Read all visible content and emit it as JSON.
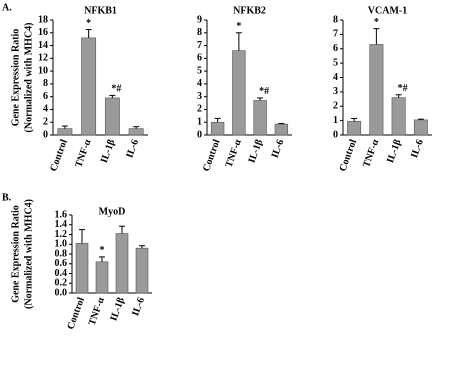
{
  "panel_labels": [
    "A.",
    "B."
  ],
  "chart_data": [
    {
      "type": "bar",
      "title": "NFKB1",
      "ylabel": [
        "Gene Expression Ratio",
        "(Normalized with MHC4)"
      ],
      "categories": [
        "Control",
        "TNF-α",
        "IL-1β",
        "IL-6"
      ],
      "values": [
        1.0,
        15.2,
        5.8,
        1.0
      ],
      "errors": [
        0.4,
        1.3,
        0.4,
        0.3
      ],
      "annotations": [
        null,
        "*",
        "*#",
        null
      ],
      "color": "#9a9a9a",
      "ylim": [
        0,
        18
      ],
      "yticks": [
        0,
        2,
        4,
        6,
        8,
        10,
        12,
        14,
        16,
        18
      ]
    },
    {
      "type": "bar",
      "title": "NFKB2",
      "categories": [
        "Control",
        "TNF-α",
        "IL-1β",
        "IL-6"
      ],
      "values": [
        1.0,
        6.6,
        2.7,
        0.85
      ],
      "errors": [
        0.3,
        1.4,
        0.2,
        0.05
      ],
      "annotations": [
        null,
        "*",
        "*#",
        null
      ],
      "color": "#9a9a9a",
      "ylim": [
        0,
        9
      ],
      "yticks": [
        0,
        1,
        2,
        3,
        4,
        5,
        6,
        7,
        8,
        9
      ]
    },
    {
      "type": "bar",
      "title": "VCAM-1",
      "categories": [
        "Control",
        "TNF-α",
        "IL-1β",
        "IL-6"
      ],
      "values": [
        0.95,
        6.3,
        2.6,
        1.05
      ],
      "errors": [
        0.2,
        1.1,
        0.2,
        0.05
      ],
      "annotations": [
        null,
        "*",
        "*#",
        null
      ],
      "color": "#9a9a9a",
      "ylim": [
        0,
        8
      ],
      "yticks": [
        0,
        1,
        2,
        3,
        4,
        5,
        6,
        7,
        8
      ]
    },
    {
      "type": "bar",
      "title": "MyoD",
      "ylabel": [
        "Gene Expression Ratio",
        "(Normalized with MHC4)"
      ],
      "categories": [
        "Control",
        "TNF-α",
        "IL-1β",
        "IL-6"
      ],
      "values": [
        1.02,
        0.64,
        1.22,
        0.92
      ],
      "errors": [
        0.28,
        0.1,
        0.15,
        0.05
      ],
      "annotations": [
        null,
        "*",
        null,
        null
      ],
      "color": "#9a9a9a",
      "ylim": [
        0,
        1.6
      ],
      "yticks": [
        {
          "value": 0,
          "label": "0.0"
        },
        0.2,
        0.4,
        0.6,
        0.8,
        {
          "value": 1,
          "label": "1.0"
        },
        1.2,
        1.4,
        1.6
      ]
    }
  ]
}
